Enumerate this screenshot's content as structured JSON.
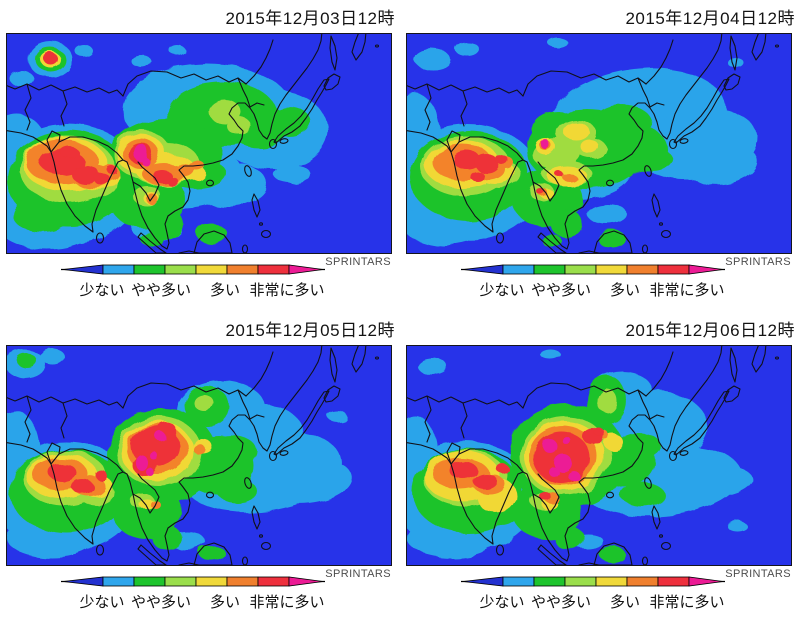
{
  "panels": [
    {
      "title": "2015年12月03日12時",
      "blobs": [
        [
          "c",
          60,
          150,
          75,
          60
        ],
        [
          "c",
          10,
          115,
          30,
          35
        ],
        [
          "c",
          40,
          190,
          50,
          25
        ],
        [
          "c",
          200,
          75,
          85,
          45
        ],
        [
          "c",
          265,
          95,
          55,
          40
        ],
        [
          "c",
          175,
          140,
          60,
          35
        ],
        [
          "c",
          220,
          150,
          40,
          22
        ],
        [
          "c",
          43,
          25,
          22,
          18
        ],
        [
          "c",
          15,
          45,
          12,
          8
        ],
        [
          "c",
          77,
          17,
          9,
          6
        ],
        [
          "c",
          134,
          27,
          10,
          6
        ],
        [
          "c",
          171,
          17,
          8,
          5
        ],
        [
          "c",
          285,
          140,
          18,
          10
        ],
        [
          "c",
          150,
          195,
          25,
          12
        ],
        [
          "g",
          62,
          145,
          62,
          48
        ],
        [
          "g",
          35,
          180,
          30,
          18
        ],
        [
          "g",
          140,
          165,
          38,
          30
        ],
        [
          "g",
          158,
          190,
          18,
          16
        ],
        [
          "g",
          215,
          80,
          55,
          32
        ],
        [
          "g",
          252,
          92,
          30,
          22
        ],
        [
          "g",
          282,
          88,
          22,
          15
        ],
        [
          "g",
          160,
          120,
          55,
          35
        ],
        [
          "g",
          130,
          125,
          30,
          28
        ],
        [
          "g",
          190,
          140,
          30,
          15
        ],
        [
          "g",
          43,
          25,
          15,
          12
        ],
        [
          "g",
          205,
          200,
          15,
          10
        ],
        [
          "g",
          145,
          205,
          12,
          7
        ],
        [
          "yg",
          60,
          135,
          48,
          33
        ],
        [
          "yg",
          135,
          120,
          28,
          24
        ],
        [
          "yg",
          158,
          130,
          35,
          22
        ],
        [
          "yg",
          218,
          78,
          16,
          12
        ],
        [
          "yg",
          232,
          92,
          12,
          9
        ],
        [
          "yg",
          140,
          162,
          14,
          10
        ],
        [
          "yg",
          90,
          150,
          20,
          14
        ],
        [
          "y",
          58,
          130,
          42,
          27
        ],
        [
          "y",
          90,
          142,
          22,
          14
        ],
        [
          "y",
          134,
          120,
          24,
          20
        ],
        [
          "y",
          158,
          135,
          30,
          16
        ],
        [
          "y",
          180,
          138,
          18,
          10
        ],
        [
          "y",
          43,
          25,
          10,
          8
        ],
        [
          "y",
          145,
          165,
          8,
          6
        ],
        [
          "o",
          55,
          128,
          36,
          22
        ],
        [
          "o",
          85,
          142,
          20,
          12
        ],
        [
          "o",
          102,
          138,
          10,
          8
        ],
        [
          "o",
          134,
          120,
          18,
          15
        ],
        [
          "o",
          157,
          140,
          22,
          11
        ],
        [
          "o",
          176,
          137,
          12,
          7
        ],
        [
          "o",
          190,
          132,
          8,
          5
        ],
        [
          "o",
          146,
          166,
          6,
          5
        ],
        [
          "r",
          55,
          128,
          22,
          13
        ],
        [
          "r",
          78,
          140,
          14,
          9
        ],
        [
          "r",
          95,
          145,
          8,
          6
        ],
        [
          "r",
          62,
          118,
          9,
          6
        ],
        [
          "r",
          134,
          120,
          12,
          11
        ],
        [
          "r",
          155,
          142,
          10,
          6
        ],
        [
          "r",
          165,
          147,
          6,
          4
        ],
        [
          "r",
          43,
          24,
          7,
          6
        ],
        [
          "r",
          104,
          135,
          5,
          4
        ],
        [
          "m",
          134,
          119,
          7,
          9
        ],
        [
          "m",
          139,
          128,
          4,
          4
        ]
      ]
    },
    {
      "title": "2015年12月04日12時",
      "blobs": [
        [
          "c",
          60,
          148,
          75,
          58
        ],
        [
          "c",
          8,
          100,
          25,
          40
        ],
        [
          "c",
          40,
          190,
          45,
          22
        ],
        [
          "c",
          230,
          85,
          90,
          50,
          -8
        ],
        [
          "c",
          290,
          110,
          60,
          35,
          -10
        ],
        [
          "c",
          315,
          130,
          35,
          20,
          -8
        ],
        [
          "c",
          170,
          135,
          55,
          30
        ],
        [
          "c",
          25,
          25,
          18,
          10
        ],
        [
          "c",
          60,
          15,
          12,
          7
        ],
        [
          "c",
          150,
          8,
          10,
          5
        ],
        [
          "c",
          330,
          30,
          8,
          5
        ],
        [
          "c",
          200,
          180,
          20,
          10
        ],
        [
          "g",
          62,
          142,
          60,
          45
        ],
        [
          "g",
          140,
          165,
          35,
          28
        ],
        [
          "g",
          160,
          190,
          16,
          14
        ],
        [
          "g",
          180,
          115,
          60,
          40
        ],
        [
          "g",
          225,
          115,
          35,
          25
        ],
        [
          "g",
          215,
          90,
          30,
          20
        ],
        [
          "g",
          245,
          125,
          20,
          12
        ],
        [
          "g",
          150,
          95,
          25,
          18
        ],
        [
          "g",
          205,
          205,
          14,
          9
        ],
        [
          "g",
          145,
          207,
          10,
          6
        ],
        [
          "yg",
          58,
          132,
          45,
          30
        ],
        [
          "yg",
          92,
          140,
          22,
          14
        ],
        [
          "yg",
          150,
          120,
          25,
          15
        ],
        [
          "yg",
          170,
          100,
          20,
          14
        ],
        [
          "yg",
          185,
          115,
          15,
          10
        ],
        [
          "yg",
          160,
          140,
          25,
          12
        ],
        [
          "yg",
          135,
          158,
          12,
          9
        ],
        [
          "y",
          55,
          130,
          38,
          24
        ],
        [
          "y",
          88,
          138,
          20,
          12
        ],
        [
          "y",
          170,
          98,
          13,
          9
        ],
        [
          "y",
          183,
          113,
          9,
          7
        ],
        [
          "y",
          160,
          142,
          20,
          10
        ],
        [
          "y",
          138,
          112,
          10,
          8
        ],
        [
          "y",
          140,
          160,
          7,
          5
        ],
        [
          "o",
          55,
          128,
          30,
          18
        ],
        [
          "o",
          82,
          135,
          16,
          11
        ],
        [
          "o",
          98,
          128,
          8,
          6
        ],
        [
          "o",
          138,
          111,
          6,
          5
        ],
        [
          "o",
          135,
          158,
          5,
          4
        ],
        [
          "o",
          162,
          143,
          7,
          4
        ],
        [
          "r",
          60,
          126,
          14,
          9
        ],
        [
          "r",
          80,
          130,
          12,
          9
        ],
        [
          "r",
          95,
          126,
          6,
          5
        ],
        [
          "r",
          70,
          142,
          7,
          5
        ],
        [
          "r",
          138,
          111,
          4,
          4
        ],
        [
          "r",
          133,
          157,
          4,
          3
        ],
        [
          "r",
          152,
          140,
          4,
          3
        ],
        [
          "m",
          138,
          110,
          4,
          5
        ]
      ]
    },
    {
      "title": "2015年12月05日12時",
      "blobs": [
        [
          "c",
          58,
          150,
          72,
          55
        ],
        [
          "c",
          8,
          105,
          25,
          40
        ],
        [
          "c",
          45,
          192,
          45,
          20
        ],
        [
          "c",
          255,
          125,
          80,
          40,
          -8
        ],
        [
          "c",
          300,
          135,
          45,
          22,
          -6
        ],
        [
          "c",
          215,
          65,
          45,
          30
        ],
        [
          "c",
          260,
          85,
          35,
          25
        ],
        [
          "c",
          18,
          18,
          20,
          14
        ],
        [
          "c",
          45,
          10,
          12,
          8
        ],
        [
          "c",
          330,
          70,
          10,
          5
        ],
        [
          "c",
          180,
          195,
          18,
          9
        ],
        [
          "g",
          60,
          145,
          58,
          42
        ],
        [
          "g",
          155,
          110,
          55,
          48
        ],
        [
          "g",
          200,
          60,
          22,
          20
        ],
        [
          "g",
          212,
          120,
          35,
          30
        ],
        [
          "g",
          225,
          105,
          25,
          15
        ],
        [
          "g",
          140,
          165,
          35,
          28
        ],
        [
          "g",
          160,
          192,
          15,
          12
        ],
        [
          "g",
          20,
          15,
          10,
          7
        ],
        [
          "g",
          205,
          207,
          13,
          8
        ],
        [
          "g",
          230,
          145,
          20,
          12
        ],
        [
          "yg",
          58,
          132,
          42,
          28
        ],
        [
          "yg",
          152,
          105,
          42,
          35
        ],
        [
          "yg",
          197,
          57,
          10,
          8
        ],
        [
          "yg",
          135,
          155,
          12,
          8
        ],
        [
          "yg",
          90,
          148,
          18,
          12
        ],
        [
          "y",
          55,
          130,
          36,
          22
        ],
        [
          "y",
          88,
          140,
          18,
          11
        ],
        [
          "y",
          150,
          105,
          36,
          30
        ],
        [
          "y",
          195,
          100,
          10,
          7
        ],
        [
          "y",
          140,
          158,
          8,
          5
        ],
        [
          "o",
          53,
          128,
          28,
          16
        ],
        [
          "o",
          82,
          140,
          16,
          10
        ],
        [
          "o",
          150,
          103,
          30,
          25
        ],
        [
          "o",
          192,
          103,
          6,
          5
        ],
        [
          "o",
          148,
          158,
          5,
          4
        ],
        [
          "r",
          55,
          126,
          14,
          9
        ],
        [
          "r",
          75,
          140,
          11,
          7
        ],
        [
          "r",
          95,
          130,
          6,
          5
        ],
        [
          "r",
          148,
          100,
          24,
          20
        ],
        [
          "r",
          138,
          120,
          12,
          10
        ],
        [
          "r",
          160,
          85,
          10,
          8
        ],
        [
          "m",
          135,
          117,
          6,
          8
        ],
        [
          "m",
          143,
          126,
          4,
          4
        ],
        [
          "m",
          153,
          90,
          5,
          5
        ],
        [
          "m",
          147,
          110,
          4,
          4
        ]
      ]
    },
    {
      "title": "2015年12月06日12時",
      "blobs": [
        [
          "c",
          58,
          150,
          72,
          55
        ],
        [
          "c",
          8,
          105,
          22,
          35
        ],
        [
          "c",
          45,
          192,
          45,
          20
        ],
        [
          "c",
          255,
          135,
          80,
          35,
          -6
        ],
        [
          "c",
          310,
          135,
          35,
          15,
          -5
        ],
        [
          "c",
          250,
          80,
          50,
          35
        ],
        [
          "c",
          215,
          45,
          30,
          20
        ],
        [
          "c",
          25,
          20,
          15,
          8
        ],
        [
          "c",
          145,
          10,
          10,
          5
        ],
        [
          "c",
          180,
          195,
          16,
          8
        ],
        [
          "c",
          330,
          180,
          10,
          5
        ],
        [
          "g",
          60,
          145,
          55,
          42
        ],
        [
          "g",
          160,
          110,
          58,
          52
        ],
        [
          "g",
          200,
          55,
          20,
          25
        ],
        [
          "g",
          218,
          115,
          30,
          25
        ],
        [
          "g",
          232,
          100,
          22,
          13
        ],
        [
          "g",
          140,
          165,
          35,
          28
        ],
        [
          "g",
          162,
          192,
          15,
          12
        ],
        [
          "g",
          205,
          208,
          13,
          8
        ],
        [
          "g",
          235,
          148,
          22,
          12
        ],
        [
          "g",
          95,
          170,
          15,
          10
        ],
        [
          "yg",
          58,
          132,
          42,
          28
        ],
        [
          "yg",
          158,
          110,
          45,
          40
        ],
        [
          "yg",
          200,
          55,
          10,
          12
        ],
        [
          "yg",
          135,
          155,
          12,
          8
        ],
        [
          "y",
          55,
          130,
          38,
          25
        ],
        [
          "y",
          90,
          150,
          20,
          18
        ],
        [
          "y",
          157,
          110,
          40,
          35
        ],
        [
          "y",
          205,
          95,
          10,
          8
        ],
        [
          "y",
          142,
          158,
          8,
          5
        ],
        [
          "o",
          54,
          128,
          28,
          16
        ],
        [
          "o",
          82,
          138,
          16,
          10
        ],
        [
          "o",
          156,
          110,
          34,
          30
        ],
        [
          "o",
          145,
          152,
          8,
          5
        ],
        [
          "o",
          196,
          88,
          5,
          4
        ],
        [
          "r",
          56,
          124,
          14,
          9
        ],
        [
          "r",
          78,
          135,
          12,
          8
        ],
        [
          "r",
          95,
          122,
          6,
          5
        ],
        [
          "r",
          155,
          112,
          28,
          26
        ],
        [
          "r",
          185,
          90,
          10,
          8
        ],
        [
          "r",
          192,
          86,
          5,
          4
        ],
        [
          "r",
          138,
          150,
          6,
          4
        ],
        [
          "m",
          143,
          100,
          7,
          7
        ],
        [
          "m",
          156,
          117,
          9,
          9
        ],
        [
          "m",
          167,
          130,
          6,
          5
        ],
        [
          "m",
          147,
          126,
          5,
          5
        ],
        [
          "m",
          160,
          95,
          4,
          4
        ]
      ]
    }
  ],
  "legend": {
    "source": "SPRINTARS",
    "labels": [
      "少ない",
      "やや多い",
      "多い",
      "非常に多い"
    ],
    "tip_low_color": "#2331d0",
    "tip_high_color": "#ec1b95",
    "segment_colors": [
      "#2fa6ec",
      "#1ec42d",
      "#9ade4b",
      "#f0d93a",
      "#f0802e",
      "#ee303d"
    ]
  },
  "map": {
    "ocean_color": "#2733e9",
    "levels": {
      "c": "#2aa4ea",
      "g": "#1fc32c",
      "yg": "#a0dc41",
      "y": "#f1d834",
      "o": "#f3832b",
      "r": "#ee3137",
      "m": "#ec1b95"
    },
    "level_order": [
      "c",
      "g",
      "yg",
      "y",
      "o",
      "r",
      "m"
    ]
  }
}
